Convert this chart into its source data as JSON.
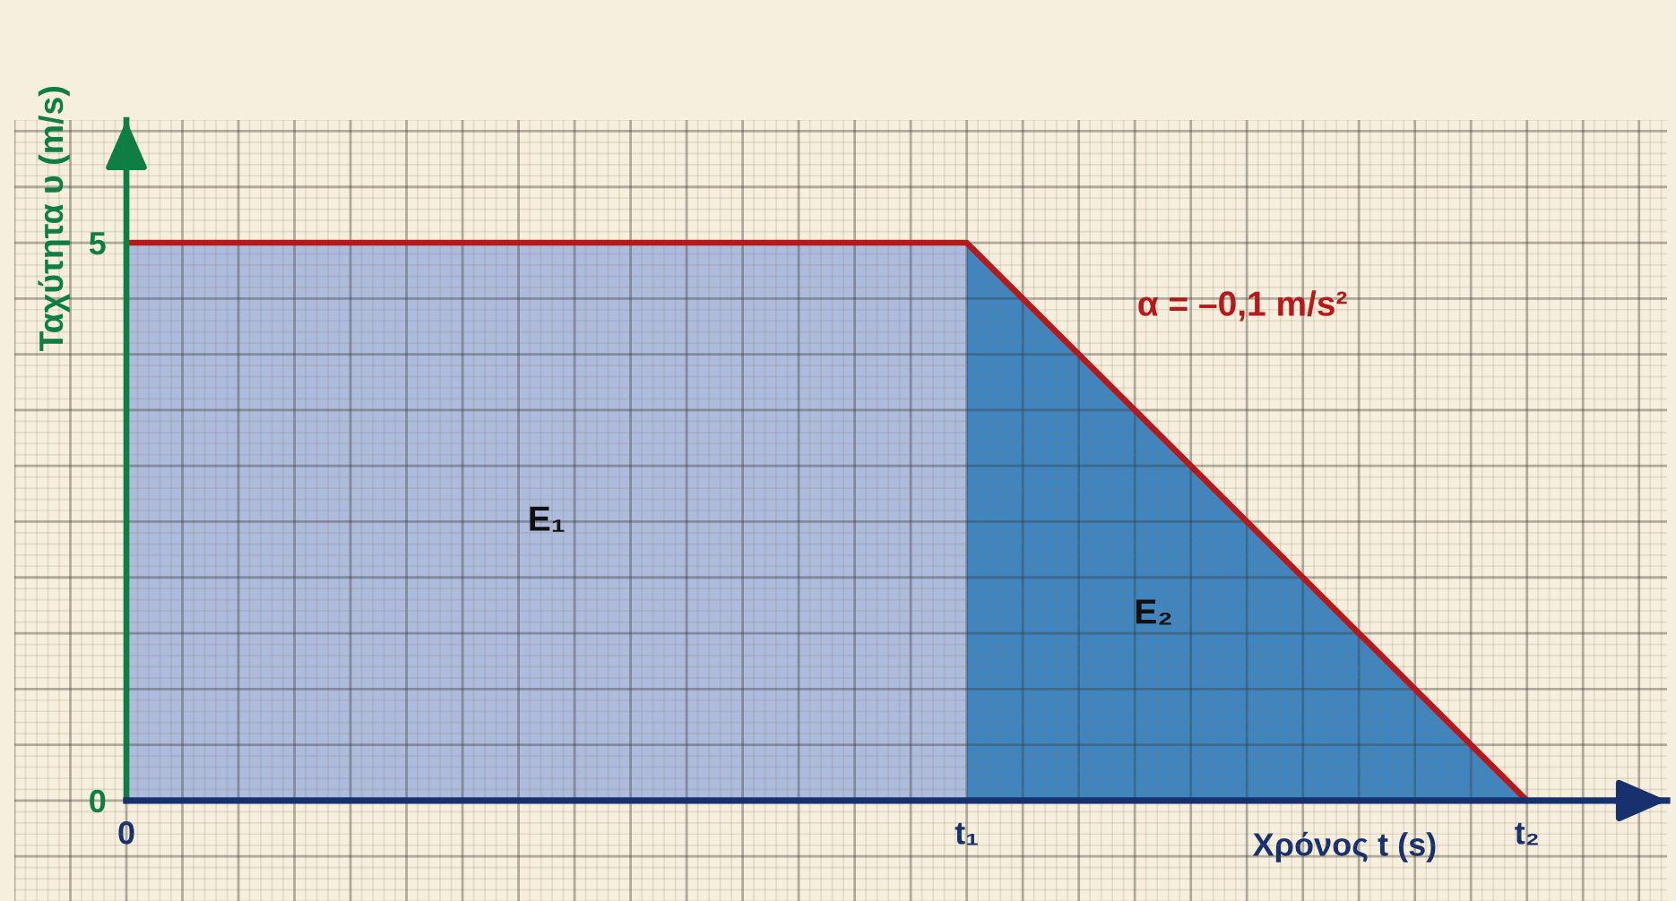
{
  "chart_data": {
    "type": "area",
    "xlabel": "Χρόνος t (s)",
    "ylabel": "Ταχύτητα υ (m/s)",
    "categories": [
      null,
      null,
      "0",
      null,
      null,
      null,
      null,
      null,
      null,
      null,
      null,
      null,
      null,
      null,
      null,
      null,
      null,
      "t₁",
      null,
      null,
      null,
      null,
      null,
      null,
      null,
      null,
      null,
      "t₂",
      null,
      null
    ],
    "series": [
      {
        "name": "E₁",
        "color": "#adbbdd",
        "values": [
          null,
          null,
          5,
          5,
          5,
          5,
          5,
          5,
          5,
          5,
          5,
          5,
          5,
          5,
          5,
          5,
          5,
          5,
          null,
          null,
          null,
          null,
          null,
          null,
          null,
          null,
          null,
          null,
          null,
          null
        ]
      },
      {
        "name": "E₂",
        "color": "#3f86c1",
        "values": [
          null,
          null,
          null,
          null,
          null,
          null,
          null,
          null,
          null,
          null,
          null,
          null,
          null,
          null,
          null,
          null,
          null,
          5,
          4.5,
          4,
          3.5,
          3,
          2.5,
          2,
          1.5,
          1,
          0.5,
          0,
          null,
          null
        ]
      },
      {
        "type": "line",
        "color": "#b5191b",
        "values": [
          null,
          null,
          5,
          5,
          5,
          5,
          5,
          5,
          5,
          5,
          5,
          5,
          5,
          5,
          5,
          5,
          5,
          5,
          4.5,
          4,
          3.5,
          3,
          2.5,
          2,
          1.5,
          1,
          0.5,
          0,
          null,
          null
        ]
      }
    ],
    "annotations": [
      "α = –0,1 m/s²"
    ],
    "ylim": [
      -0.9,
      6.1
    ],
    "yticks": [
      {
        "value": -0.5,
        "label": null
      },
      0,
      {
        "value": 0.5,
        "label": null
      },
      {
        "value": 1,
        "label": null
      },
      {
        "value": 1.5,
        "label": null
      },
      {
        "value": 2,
        "label": null
      },
      {
        "value": 2.5,
        "label": null
      },
      {
        "value": 3,
        "label": null
      },
      {
        "value": 3.5,
        "label": null
      },
      {
        "value": 4,
        "label": null
      },
      {
        "value": 4.5,
        "label": null
      },
      5,
      {
        "value": 5.5,
        "label": null
      },
      {
        "value": 6,
        "label": null
      }
    ],
    "grid": true
  }
}
